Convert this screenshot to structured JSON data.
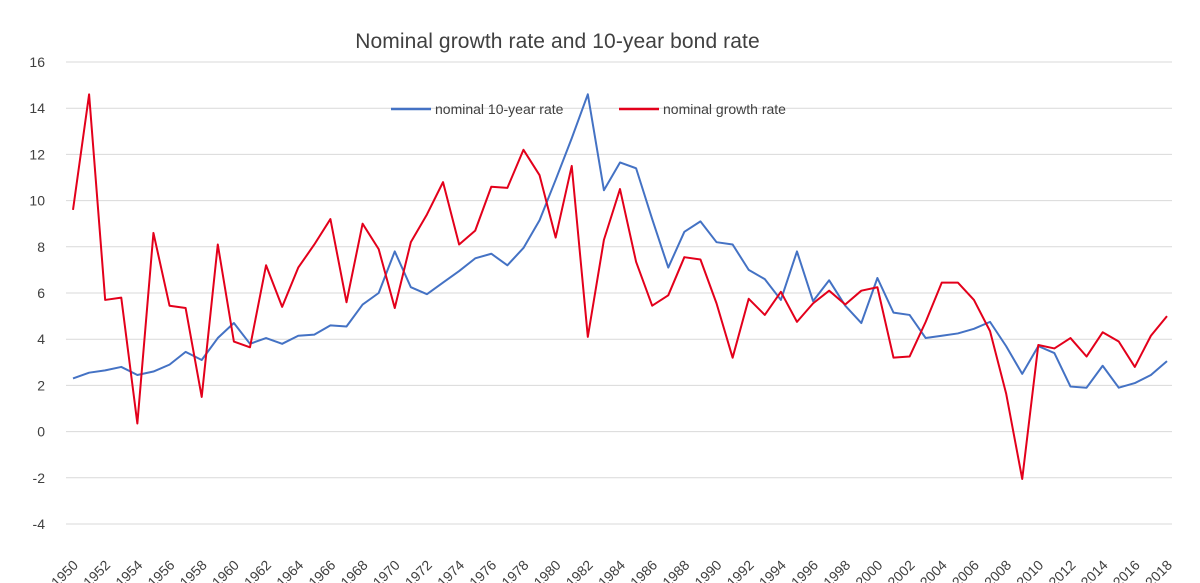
{
  "chart_data": {
    "type": "line",
    "title": "Nominal growth rate and 10-year bond rate",
    "xlabel": "",
    "ylabel": "",
    "ylim": [
      -4,
      16
    ],
    "yticks": [
      -4,
      -2,
      0,
      2,
      4,
      6,
      8,
      10,
      12,
      14,
      16
    ],
    "xlim": [
      1950,
      2018
    ],
    "xticks": [
      1950,
      1952,
      1954,
      1956,
      1958,
      1960,
      1962,
      1964,
      1966,
      1968,
      1970,
      1972,
      1974,
      1976,
      1978,
      1980,
      1982,
      1984,
      1986,
      1988,
      1990,
      1992,
      1994,
      1996,
      1998,
      2000,
      2002,
      2004,
      2006,
      2008,
      2010,
      2012,
      2014,
      2016,
      2018
    ],
    "grid": "horizontal",
    "legend_position": "top-center",
    "x": [
      1950,
      1951,
      1952,
      1953,
      1954,
      1955,
      1956,
      1957,
      1958,
      1959,
      1960,
      1961,
      1962,
      1963,
      1964,
      1965,
      1966,
      1967,
      1968,
      1969,
      1970,
      1971,
      1972,
      1973,
      1974,
      1975,
      1976,
      1977,
      1978,
      1979,
      1980,
      1981,
      1982,
      1983,
      1984,
      1985,
      1986,
      1987,
      1988,
      1989,
      1990,
      1991,
      1992,
      1993,
      1994,
      1995,
      1996,
      1997,
      1998,
      1999,
      2000,
      2001,
      2002,
      2003,
      2004,
      2005,
      2006,
      2007,
      2008,
      2009,
      2010,
      2011,
      2012,
      2013,
      2014,
      2015,
      2016,
      2017,
      2018
    ],
    "series": [
      {
        "name": "nominal 10-year rate",
        "color": "#4472c4",
        "values": [
          2.3,
          2.55,
          2.65,
          2.8,
          2.45,
          2.6,
          2.9,
          3.45,
          3.1,
          4.05,
          4.7,
          3.8,
          4.05,
          3.8,
          4.15,
          4.2,
          4.6,
          4.55,
          5.5,
          6.0,
          7.8,
          6.25,
          5.95,
          6.45,
          6.95,
          7.5,
          7.7,
          7.2,
          7.95,
          9.15,
          10.9,
          12.7,
          14.6,
          10.45,
          11.65,
          11.4,
          9.2,
          7.1,
          8.65,
          9.1,
          8.2,
          8.1,
          7.0,
          6.6,
          5.7,
          7.8,
          5.65,
          6.55,
          5.45,
          4.7,
          6.65,
          5.15,
          5.05,
          4.05,
          4.15,
          4.25,
          4.45,
          4.75,
          3.7,
          2.5,
          3.7,
          3.4,
          1.95,
          1.9,
          2.85,
          1.9,
          2.1,
          2.45,
          3.05
        ]
      },
      {
        "name": "nominal growth rate",
        "color": "#e3001b",
        "values": [
          9.6,
          14.6,
          5.7,
          5.8,
          0.35,
          8.6,
          5.45,
          5.35,
          1.5,
          8.1,
          3.9,
          3.65,
          7.2,
          5.4,
          7.1,
          8.1,
          9.2,
          5.6,
          9.0,
          7.9,
          5.35,
          8.2,
          9.4,
          10.8,
          8.1,
          8.7,
          10.6,
          10.55,
          12.2,
          11.1,
          8.4,
          11.5,
          4.1,
          8.3,
          10.5,
          7.35,
          5.45,
          5.9,
          7.55,
          7.45,
          5.55,
          3.2,
          5.75,
          5.05,
          6.05,
          4.75,
          5.55,
          6.1,
          5.5,
          6.1,
          6.25,
          3.2,
          3.25,
          4.75,
          6.45,
          6.45,
          5.7,
          4.35,
          1.65,
          -2.05,
          3.75,
          3.6,
          4.05,
          3.25,
          4.3,
          3.9,
          2.8,
          4.15,
          5.0
        ]
      }
    ]
  }
}
